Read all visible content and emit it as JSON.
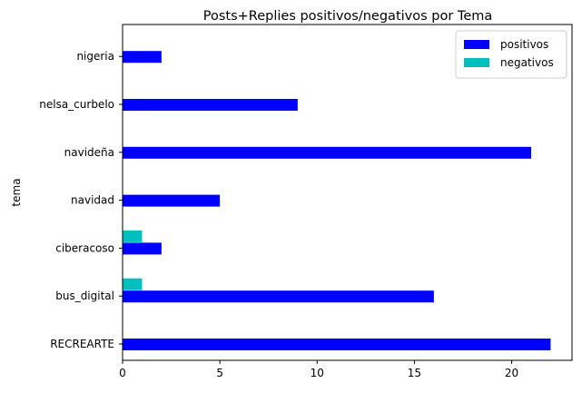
{
  "chart_data": {
    "type": "bar",
    "orientation": "horizontal",
    "title": "Posts+Replies positivos/negativos por Tema",
    "xlabel": "",
    "ylabel": "tema",
    "categories": [
      "RECREARTE",
      "bus_digital",
      "ciberacoso",
      "navidad",
      "navideña",
      "nelsa_curbelo",
      "nigeria"
    ],
    "series": [
      {
        "name": "positivos",
        "color": "#0000ff",
        "values": [
          22,
          16,
          2,
          5,
          21,
          9,
          2
        ]
      },
      {
        "name": "negativos",
        "color": "#00bfbf",
        "values": [
          0,
          1,
          1,
          0,
          0,
          0,
          0
        ]
      }
    ],
    "xlim": [
      0,
      23.1
    ],
    "xticks": [
      0,
      5,
      10,
      15,
      20
    ],
    "grid": false,
    "legend_position": "top-right"
  }
}
